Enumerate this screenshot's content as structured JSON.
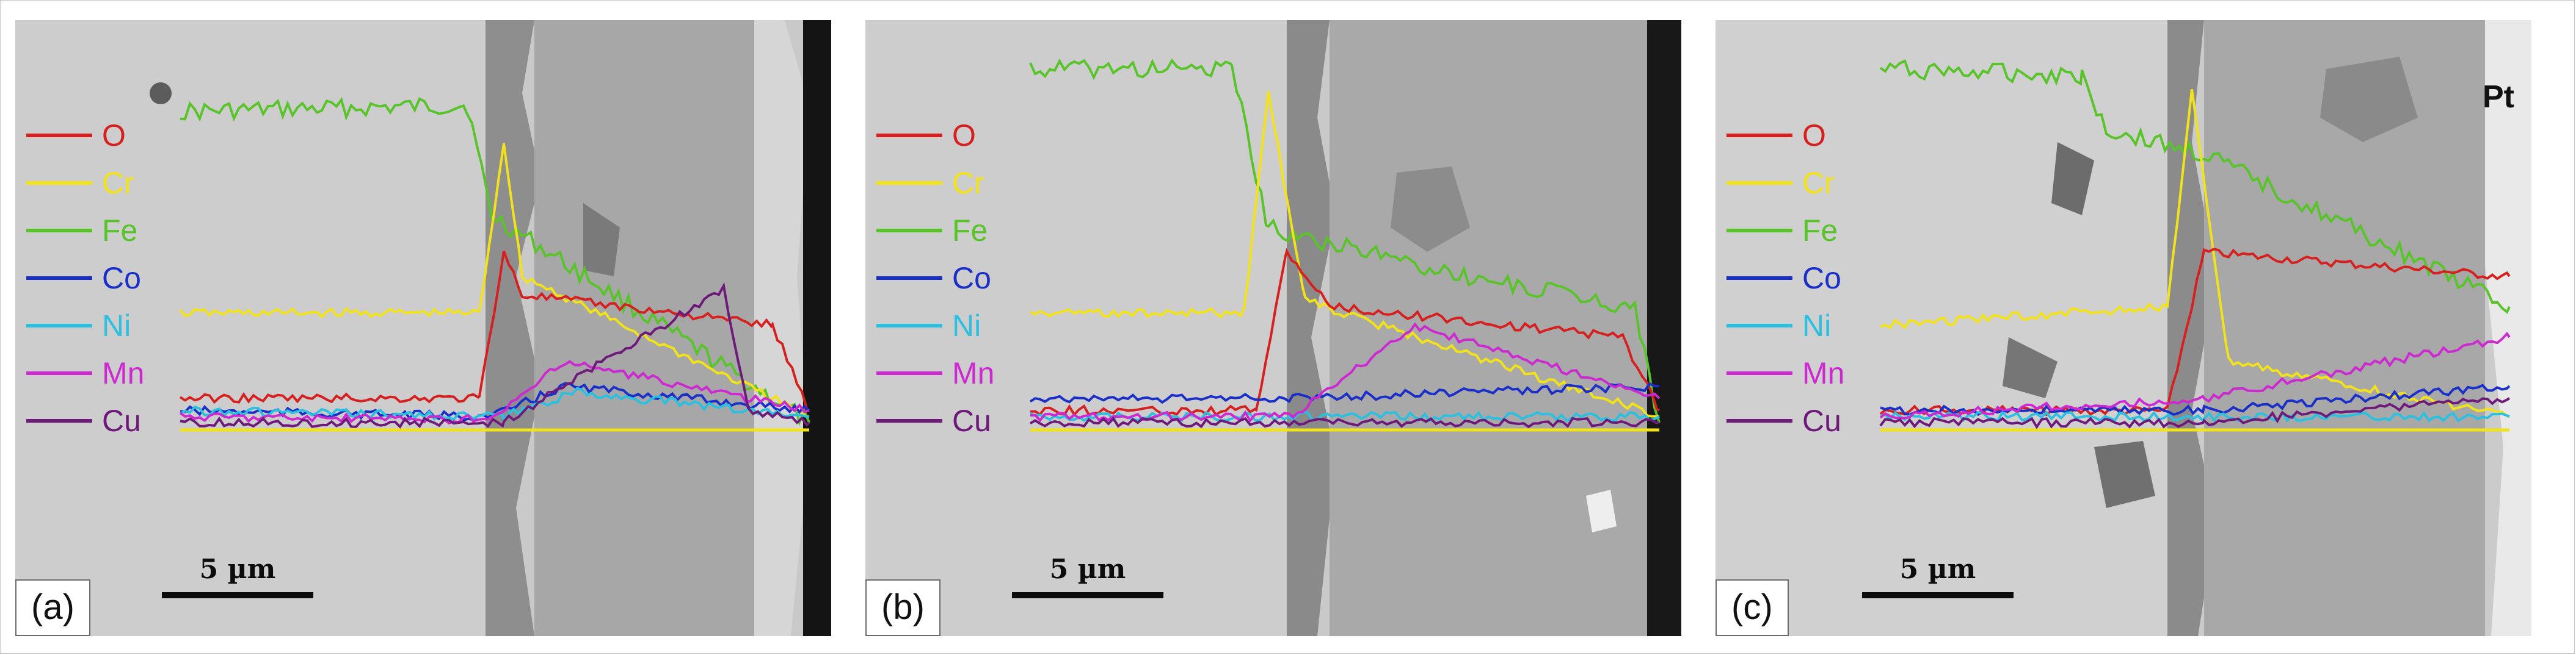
{
  "legend": [
    {
      "label": "O",
      "color": "#d62020"
    },
    {
      "label": "Cr",
      "color": "#f2e21a"
    },
    {
      "label": "Fe",
      "color": "#58c42a"
    },
    {
      "label": "Co",
      "color": "#1a2fc8"
    },
    {
      "label": "Ni",
      "color": "#2cc0e0"
    },
    {
      "label": "Mn",
      "color": "#cc2ad0"
    },
    {
      "label": "Cu",
      "color": "#6e1a7a"
    }
  ],
  "panels": [
    {
      "tag": "(a)",
      "scalebar_label": "5 µm",
      "extra_label": ""
    },
    {
      "tag": "(b)",
      "scalebar_label": "5 µm",
      "extra_label": ""
    },
    {
      "tag": "(c)",
      "scalebar_label": "5 µm",
      "extra_label": "Pt"
    }
  ]
}
